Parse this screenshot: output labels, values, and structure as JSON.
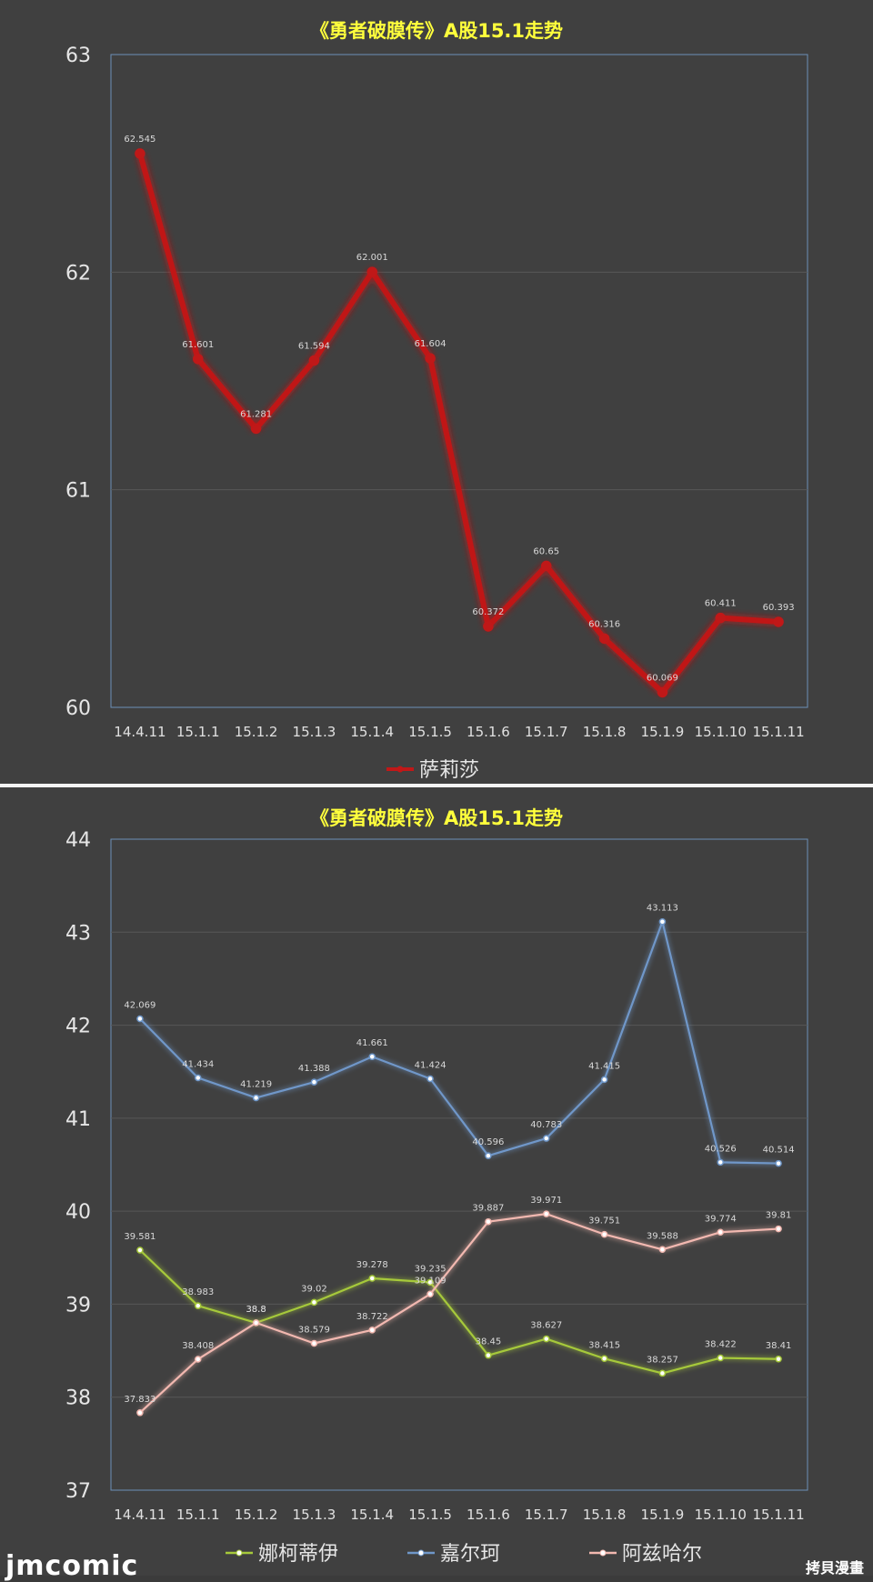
{
  "chart_data": [
    {
      "type": "line",
      "title": "《勇者破膜传》A股15.1走势",
      "categories": [
        "14.4.11",
        "15.1.1",
        "15.1.2",
        "15.1.3",
        "15.1.4",
        "15.1.5",
        "15.1.6",
        "15.1.7",
        "15.1.8",
        "15.1.9",
        "15.1.10",
        "15.1.11"
      ],
      "ylim": [
        60,
        63
      ],
      "yticks": [
        60,
        61,
        62,
        63
      ],
      "grid": true,
      "legend_position": "bottom",
      "series": [
        {
          "name": "萨莉莎",
          "color": "#c01818",
          "values": [
            62.545,
            61.601,
            61.281,
            61.594,
            62.001,
            61.604,
            60.372,
            60.65,
            60.316,
            60.069,
            60.411,
            60.393
          ],
          "labels": [
            "62.545",
            "61.601",
            "61.281",
            "61.594",
            "62.001",
            "61.604",
            "60.372",
            "60.65",
            "60.316",
            "60.069",
            "60.411",
            "60.393"
          ]
        }
      ]
    },
    {
      "type": "line",
      "title": "《勇者破膜传》A股15.1走势",
      "categories": [
        "14.4.11",
        "15.1.1",
        "15.1.2",
        "15.1.3",
        "15.1.4",
        "15.1.5",
        "15.1.6",
        "15.1.7",
        "15.1.8",
        "15.1.9",
        "15.1.10",
        "15.1.11"
      ],
      "ylim": [
        37,
        44
      ],
      "yticks": [
        37,
        38,
        39,
        40,
        41,
        42,
        43,
        44
      ],
      "grid": true,
      "legend_position": "bottom",
      "series": [
        {
          "name": "娜柯蒂伊",
          "color": "#a6c93a",
          "values": [
            39.581,
            38.983,
            38.8,
            39.02,
            39.278,
            39.235,
            38.45,
            38.627,
            38.415,
            38.257,
            38.422,
            38.41
          ],
          "labels": [
            "39.581",
            "38.983",
            "38.8",
            "39.02",
            "39.278",
            "39.235",
            "38.45",
            "38.627",
            "38.415",
            "38.257",
            "38.422",
            "38.41"
          ]
        },
        {
          "name": "嘉尔珂",
          "color": "#6f97c9",
          "values": [
            42.069,
            41.434,
            41.219,
            41.388,
            41.661,
            41.424,
            40.596,
            40.783,
            41.415,
            43.113,
            40.526,
            40.514
          ],
          "labels": [
            "42.069",
            "41.434",
            "41.219",
            "41.388",
            "41.661",
            "41.424",
            "40.596",
            "40.783",
            "41.415",
            "43.113",
            "40.526",
            "40.514"
          ]
        },
        {
          "name": "阿兹哈尔",
          "color": "#f2b8b0",
          "values": [
            37.833,
            38.408,
            38.8,
            38.579,
            38.722,
            39.109,
            39.887,
            39.971,
            39.751,
            39.588,
            39.774,
            39.81
          ],
          "labels": [
            "37.833",
            "38.408",
            "38.8",
            "38.579",
            "38.722",
            "39.109",
            "39.887",
            "39.971",
            "39.751",
            "39.588",
            "39.774",
            "39.81"
          ]
        }
      ]
    }
  ],
  "watermark": "jmcomic",
  "copy_mark": "拷貝漫畫"
}
